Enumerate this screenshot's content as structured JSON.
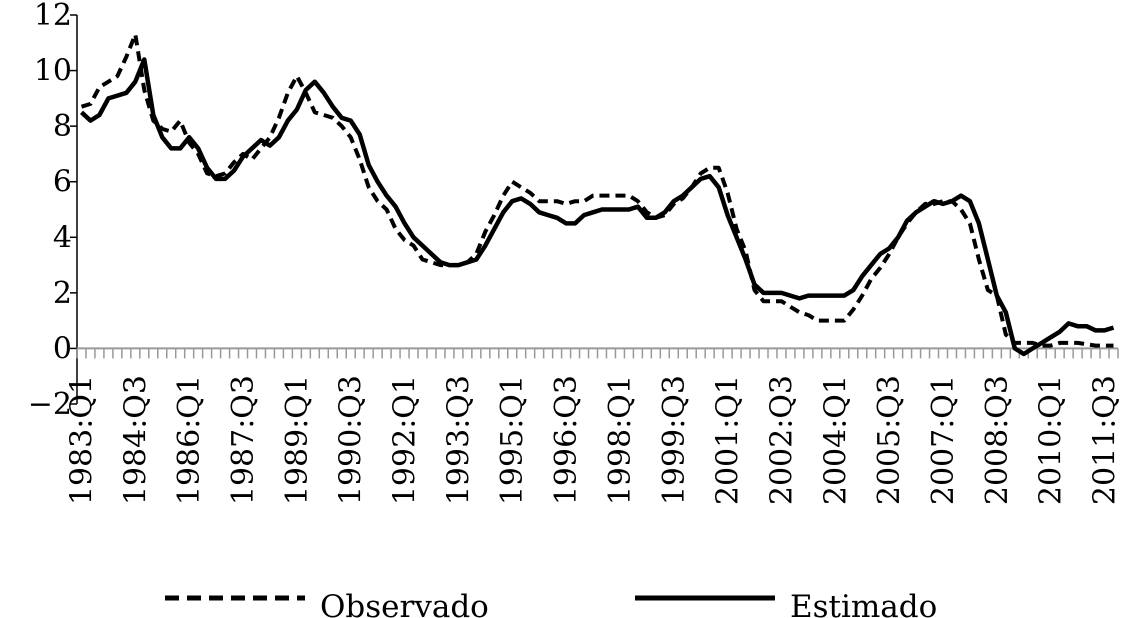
{
  "chart_data": {
    "type": "line",
    "title": "",
    "xlabel": "",
    "ylabel": "",
    "ylim": [
      -2,
      12
    ],
    "yticks": [
      -2,
      0,
      2,
      4,
      6,
      8,
      10,
      12
    ],
    "ytick_labels": [
      "−2",
      "0",
      "2",
      "4",
      "6",
      "8",
      "10",
      "12"
    ],
    "xlim": [
      "1983:Q1",
      "2011:Q4"
    ],
    "x_tick_labels": [
      "1983:Q1",
      "1984:Q3",
      "1986:Q1",
      "1987:Q3",
      "1989:Q1",
      "1990:Q3",
      "1992:Q1",
      "1993:Q3",
      "1995:Q1",
      "1996:Q3",
      "1998:Q1",
      "1999:Q3",
      "2001:Q1",
      "2002:Q3",
      "2004:Q1",
      "2005:Q3",
      "2007:Q1",
      "2008:Q3",
      "2010:Q1",
      "2011:Q3"
    ],
    "grid": false,
    "legend_position": "bottom",
    "series": [
      {
        "name": "Observado",
        "style": "dashed",
        "color": "#000000",
        "points": [
          [
            "1983:Q1",
            8.7
          ],
          [
            "1983:Q2",
            8.8
          ],
          [
            "1983:Q3",
            9.4
          ],
          [
            "1983:Q4",
            9.6
          ],
          [
            "1984:Q1",
            9.8
          ],
          [
            "1984:Q2",
            10.5
          ],
          [
            "1984:Q3",
            11.3
          ],
          [
            "1984:Q4",
            9.3
          ],
          [
            "1985:Q1",
            8.2
          ],
          [
            "1985:Q2",
            7.9
          ],
          [
            "1985:Q3",
            7.8
          ],
          [
            "1985:Q4",
            8.2
          ],
          [
            "1986:Q1",
            7.4
          ],
          [
            "1986:Q2",
            7.0
          ],
          [
            "1986:Q3",
            6.3
          ],
          [
            "1986:Q4",
            6.2
          ],
          [
            "1987:Q1",
            6.3
          ],
          [
            "1987:Q2",
            6.7
          ],
          [
            "1987:Q3",
            7.0
          ],
          [
            "1987:Q4",
            6.8
          ],
          [
            "1988:Q1",
            7.2
          ],
          [
            "1988:Q2",
            7.6
          ],
          [
            "1988:Q3",
            8.3
          ],
          [
            "1988:Q4",
            9.2
          ],
          [
            "1989:Q1",
            9.8
          ],
          [
            "1989:Q2",
            9.2
          ],
          [
            "1989:Q3",
            8.5
          ],
          [
            "1989:Q4",
            8.4
          ],
          [
            "1990:Q1",
            8.3
          ],
          [
            "1990:Q2",
            8.0
          ],
          [
            "1990:Q3",
            7.6
          ],
          [
            "1990:Q4",
            6.8
          ],
          [
            "1991:Q1",
            5.8
          ],
          [
            "1991:Q2",
            5.3
          ],
          [
            "1991:Q3",
            5.0
          ],
          [
            "1991:Q4",
            4.3
          ],
          [
            "1992:Q1",
            3.9
          ],
          [
            "1992:Q2",
            3.7
          ],
          [
            "1992:Q3",
            3.2
          ],
          [
            "1992:Q4",
            3.1
          ],
          [
            "1993:Q1",
            3.0
          ],
          [
            "1993:Q2",
            3.0
          ],
          [
            "1993:Q3",
            3.0
          ],
          [
            "1993:Q4",
            3.1
          ],
          [
            "1994:Q1",
            3.4
          ],
          [
            "1994:Q2",
            4.2
          ],
          [
            "1994:Q3",
            4.8
          ],
          [
            "1994:Q4",
            5.5
          ],
          [
            "1995:Q1",
            6.0
          ],
          [
            "1995:Q2",
            5.8
          ],
          [
            "1995:Q3",
            5.6
          ],
          [
            "1995:Q4",
            5.3
          ],
          [
            "1996:Q1",
            5.3
          ],
          [
            "1996:Q2",
            5.3
          ],
          [
            "1996:Q3",
            5.2
          ],
          [
            "1996:Q4",
            5.3
          ],
          [
            "1997:Q1",
            5.3
          ],
          [
            "1997:Q2",
            5.5
          ],
          [
            "1997:Q3",
            5.5
          ],
          [
            "1997:Q4",
            5.5
          ],
          [
            "1998:Q1",
            5.5
          ],
          [
            "1998:Q2",
            5.5
          ],
          [
            "1998:Q3",
            5.3
          ],
          [
            "1998:Q4",
            4.9
          ],
          [
            "1999:Q1",
            4.7
          ],
          [
            "1999:Q2",
            4.8
          ],
          [
            "1999:Q3",
            5.2
          ],
          [
            "1999:Q4",
            5.4
          ],
          [
            "2000:Q1",
            5.8
          ],
          [
            "2000:Q2",
            6.3
          ],
          [
            "2000:Q3",
            6.5
          ],
          [
            "2000:Q4",
            6.5
          ],
          [
            "2001:Q1",
            5.6
          ],
          [
            "2001:Q2",
            4.3
          ],
          [
            "2001:Q3",
            3.5
          ],
          [
            "2001:Q4",
            2.1
          ],
          [
            "2002:Q1",
            1.7
          ],
          [
            "2002:Q2",
            1.7
          ],
          [
            "2002:Q3",
            1.7
          ],
          [
            "2002:Q4",
            1.5
          ],
          [
            "2003:Q1",
            1.3
          ],
          [
            "2003:Q2",
            1.2
          ],
          [
            "2003:Q3",
            1.0
          ],
          [
            "2003:Q4",
            1.0
          ],
          [
            "2004:Q1",
            1.0
          ],
          [
            "2004:Q2",
            1.0
          ],
          [
            "2004:Q3",
            1.4
          ],
          [
            "2004:Q4",
            1.9
          ],
          [
            "2005:Q1",
            2.5
          ],
          [
            "2005:Q2",
            2.9
          ],
          [
            "2005:Q3",
            3.4
          ],
          [
            "2005:Q4",
            4.0
          ],
          [
            "2006:Q1",
            4.5
          ],
          [
            "2006:Q2",
            4.9
          ],
          [
            "2006:Q3",
            5.2
          ],
          [
            "2006:Q4",
            5.2
          ],
          [
            "2007:Q1",
            5.3
          ],
          [
            "2007:Q2",
            5.3
          ],
          [
            "2007:Q3",
            5.0
          ],
          [
            "2007:Q4",
            4.5
          ],
          [
            "2008:Q1",
            3.2
          ],
          [
            "2008:Q2",
            2.1
          ],
          [
            "2008:Q3",
            1.9
          ],
          [
            "2008:Q4",
            0.5
          ],
          [
            "2009:Q1",
            0.2
          ],
          [
            "2009:Q2",
            0.2
          ],
          [
            "2009:Q3",
            0.2
          ],
          [
            "2009:Q4",
            0.1
          ],
          [
            "2010:Q1",
            0.1
          ],
          [
            "2010:Q2",
            0.2
          ],
          [
            "2010:Q3",
            0.2
          ],
          [
            "2010:Q4",
            0.2
          ],
          [
            "2011:Q1",
            0.15
          ],
          [
            "2011:Q2",
            0.1
          ],
          [
            "2011:Q3",
            0.1
          ],
          [
            "2011:Q4",
            0.1
          ]
        ]
      },
      {
        "name": "Estimado",
        "style": "solid",
        "color": "#000000",
        "points": [
          [
            "1983:Q1",
            8.5
          ],
          [
            "1983:Q2",
            8.2
          ],
          [
            "1983:Q3",
            8.4
          ],
          [
            "1983:Q4",
            9.0
          ],
          [
            "1984:Q1",
            9.1
          ],
          [
            "1984:Q2",
            9.2
          ],
          [
            "1984:Q3",
            9.6
          ],
          [
            "1984:Q4",
            10.4
          ],
          [
            "1985:Q1",
            8.4
          ],
          [
            "1985:Q2",
            7.6
          ],
          [
            "1985:Q3",
            7.2
          ],
          [
            "1985:Q4",
            7.2
          ],
          [
            "1986:Q1",
            7.6
          ],
          [
            "1986:Q2",
            7.2
          ],
          [
            "1986:Q3",
            6.5
          ],
          [
            "1986:Q4",
            6.1
          ],
          [
            "1987:Q1",
            6.1
          ],
          [
            "1987:Q2",
            6.4
          ],
          [
            "1987:Q3",
            6.9
          ],
          [
            "1987:Q4",
            7.2
          ],
          [
            "1988:Q1",
            7.5
          ],
          [
            "1988:Q2",
            7.3
          ],
          [
            "1988:Q3",
            7.6
          ],
          [
            "1988:Q4",
            8.2
          ],
          [
            "1989:Q1",
            8.6
          ],
          [
            "1989:Q2",
            9.3
          ],
          [
            "1989:Q3",
            9.6
          ],
          [
            "1989:Q4",
            9.2
          ],
          [
            "1990:Q1",
            8.7
          ],
          [
            "1990:Q2",
            8.3
          ],
          [
            "1990:Q3",
            8.2
          ],
          [
            "1990:Q4",
            7.7
          ],
          [
            "1991:Q1",
            6.6
          ],
          [
            "1991:Q2",
            6.0
          ],
          [
            "1991:Q3",
            5.5
          ],
          [
            "1991:Q4",
            5.1
          ],
          [
            "1992:Q1",
            4.5
          ],
          [
            "1992:Q2",
            4.0
          ],
          [
            "1992:Q3",
            3.7
          ],
          [
            "1992:Q4",
            3.4
          ],
          [
            "1993:Q1",
            3.1
          ],
          [
            "1993:Q2",
            3.0
          ],
          [
            "1993:Q3",
            3.0
          ],
          [
            "1993:Q4",
            3.1
          ],
          [
            "1994:Q1",
            3.2
          ],
          [
            "1994:Q2",
            3.7
          ],
          [
            "1994:Q3",
            4.3
          ],
          [
            "1994:Q4",
            4.9
          ],
          [
            "1995:Q1",
            5.3
          ],
          [
            "1995:Q2",
            5.4
          ],
          [
            "1995:Q3",
            5.2
          ],
          [
            "1995:Q4",
            4.9
          ],
          [
            "1996:Q1",
            4.8
          ],
          [
            "1996:Q2",
            4.7
          ],
          [
            "1996:Q3",
            4.5
          ],
          [
            "1996:Q4",
            4.5
          ],
          [
            "1997:Q1",
            4.8
          ],
          [
            "1997:Q2",
            4.9
          ],
          [
            "1997:Q3",
            5.0
          ],
          [
            "1997:Q4",
            5.0
          ],
          [
            "1998:Q1",
            5.0
          ],
          [
            "1998:Q2",
            5.0
          ],
          [
            "1998:Q3",
            5.1
          ],
          [
            "1998:Q4",
            4.7
          ],
          [
            "1999:Q1",
            4.7
          ],
          [
            "1999:Q2",
            4.9
          ],
          [
            "1999:Q3",
            5.3
          ],
          [
            "1999:Q4",
            5.5
          ],
          [
            "2000:Q1",
            5.8
          ],
          [
            "2000:Q2",
            6.1
          ],
          [
            "2000:Q3",
            6.2
          ],
          [
            "2000:Q4",
            5.8
          ],
          [
            "2001:Q1",
            4.8
          ],
          [
            "2001:Q2",
            4.0
          ],
          [
            "2001:Q3",
            3.2
          ],
          [
            "2001:Q4",
            2.3
          ],
          [
            "2002:Q1",
            2.0
          ],
          [
            "2002:Q2",
            2.0
          ],
          [
            "2002:Q3",
            2.0
          ],
          [
            "2002:Q4",
            1.9
          ],
          [
            "2003:Q1",
            1.8
          ],
          [
            "2003:Q2",
            1.9
          ],
          [
            "2003:Q3",
            1.9
          ],
          [
            "2003:Q4",
            1.9
          ],
          [
            "2004:Q1",
            1.9
          ],
          [
            "2004:Q2",
            1.9
          ],
          [
            "2004:Q3",
            2.1
          ],
          [
            "2004:Q4",
            2.6
          ],
          [
            "2005:Q1",
            3.0
          ],
          [
            "2005:Q2",
            3.4
          ],
          [
            "2005:Q3",
            3.6
          ],
          [
            "2005:Q4",
            4.0
          ],
          [
            "2006:Q1",
            4.6
          ],
          [
            "2006:Q2",
            4.9
          ],
          [
            "2006:Q3",
            5.1
          ],
          [
            "2006:Q4",
            5.3
          ],
          [
            "2007:Q1",
            5.2
          ],
          [
            "2007:Q2",
            5.3
          ],
          [
            "2007:Q3",
            5.5
          ],
          [
            "2007:Q4",
            5.3
          ],
          [
            "2008:Q1",
            4.5
          ],
          [
            "2008:Q2",
            3.2
          ],
          [
            "2008:Q3",
            1.9
          ],
          [
            "2008:Q4",
            1.3
          ],
          [
            "2009:Q1",
            0.0
          ],
          [
            "2009:Q2",
            -0.2
          ],
          [
            "2009:Q3",
            0.0
          ],
          [
            "2009:Q4",
            0.2
          ],
          [
            "2010:Q1",
            0.4
          ],
          [
            "2010:Q2",
            0.6
          ],
          [
            "2010:Q3",
            0.9
          ],
          [
            "2010:Q4",
            0.8
          ],
          [
            "2011:Q1",
            0.8
          ],
          [
            "2011:Q2",
            0.65
          ],
          [
            "2011:Q3",
            0.65
          ],
          [
            "2011:Q4",
            0.75
          ]
        ]
      }
    ]
  }
}
